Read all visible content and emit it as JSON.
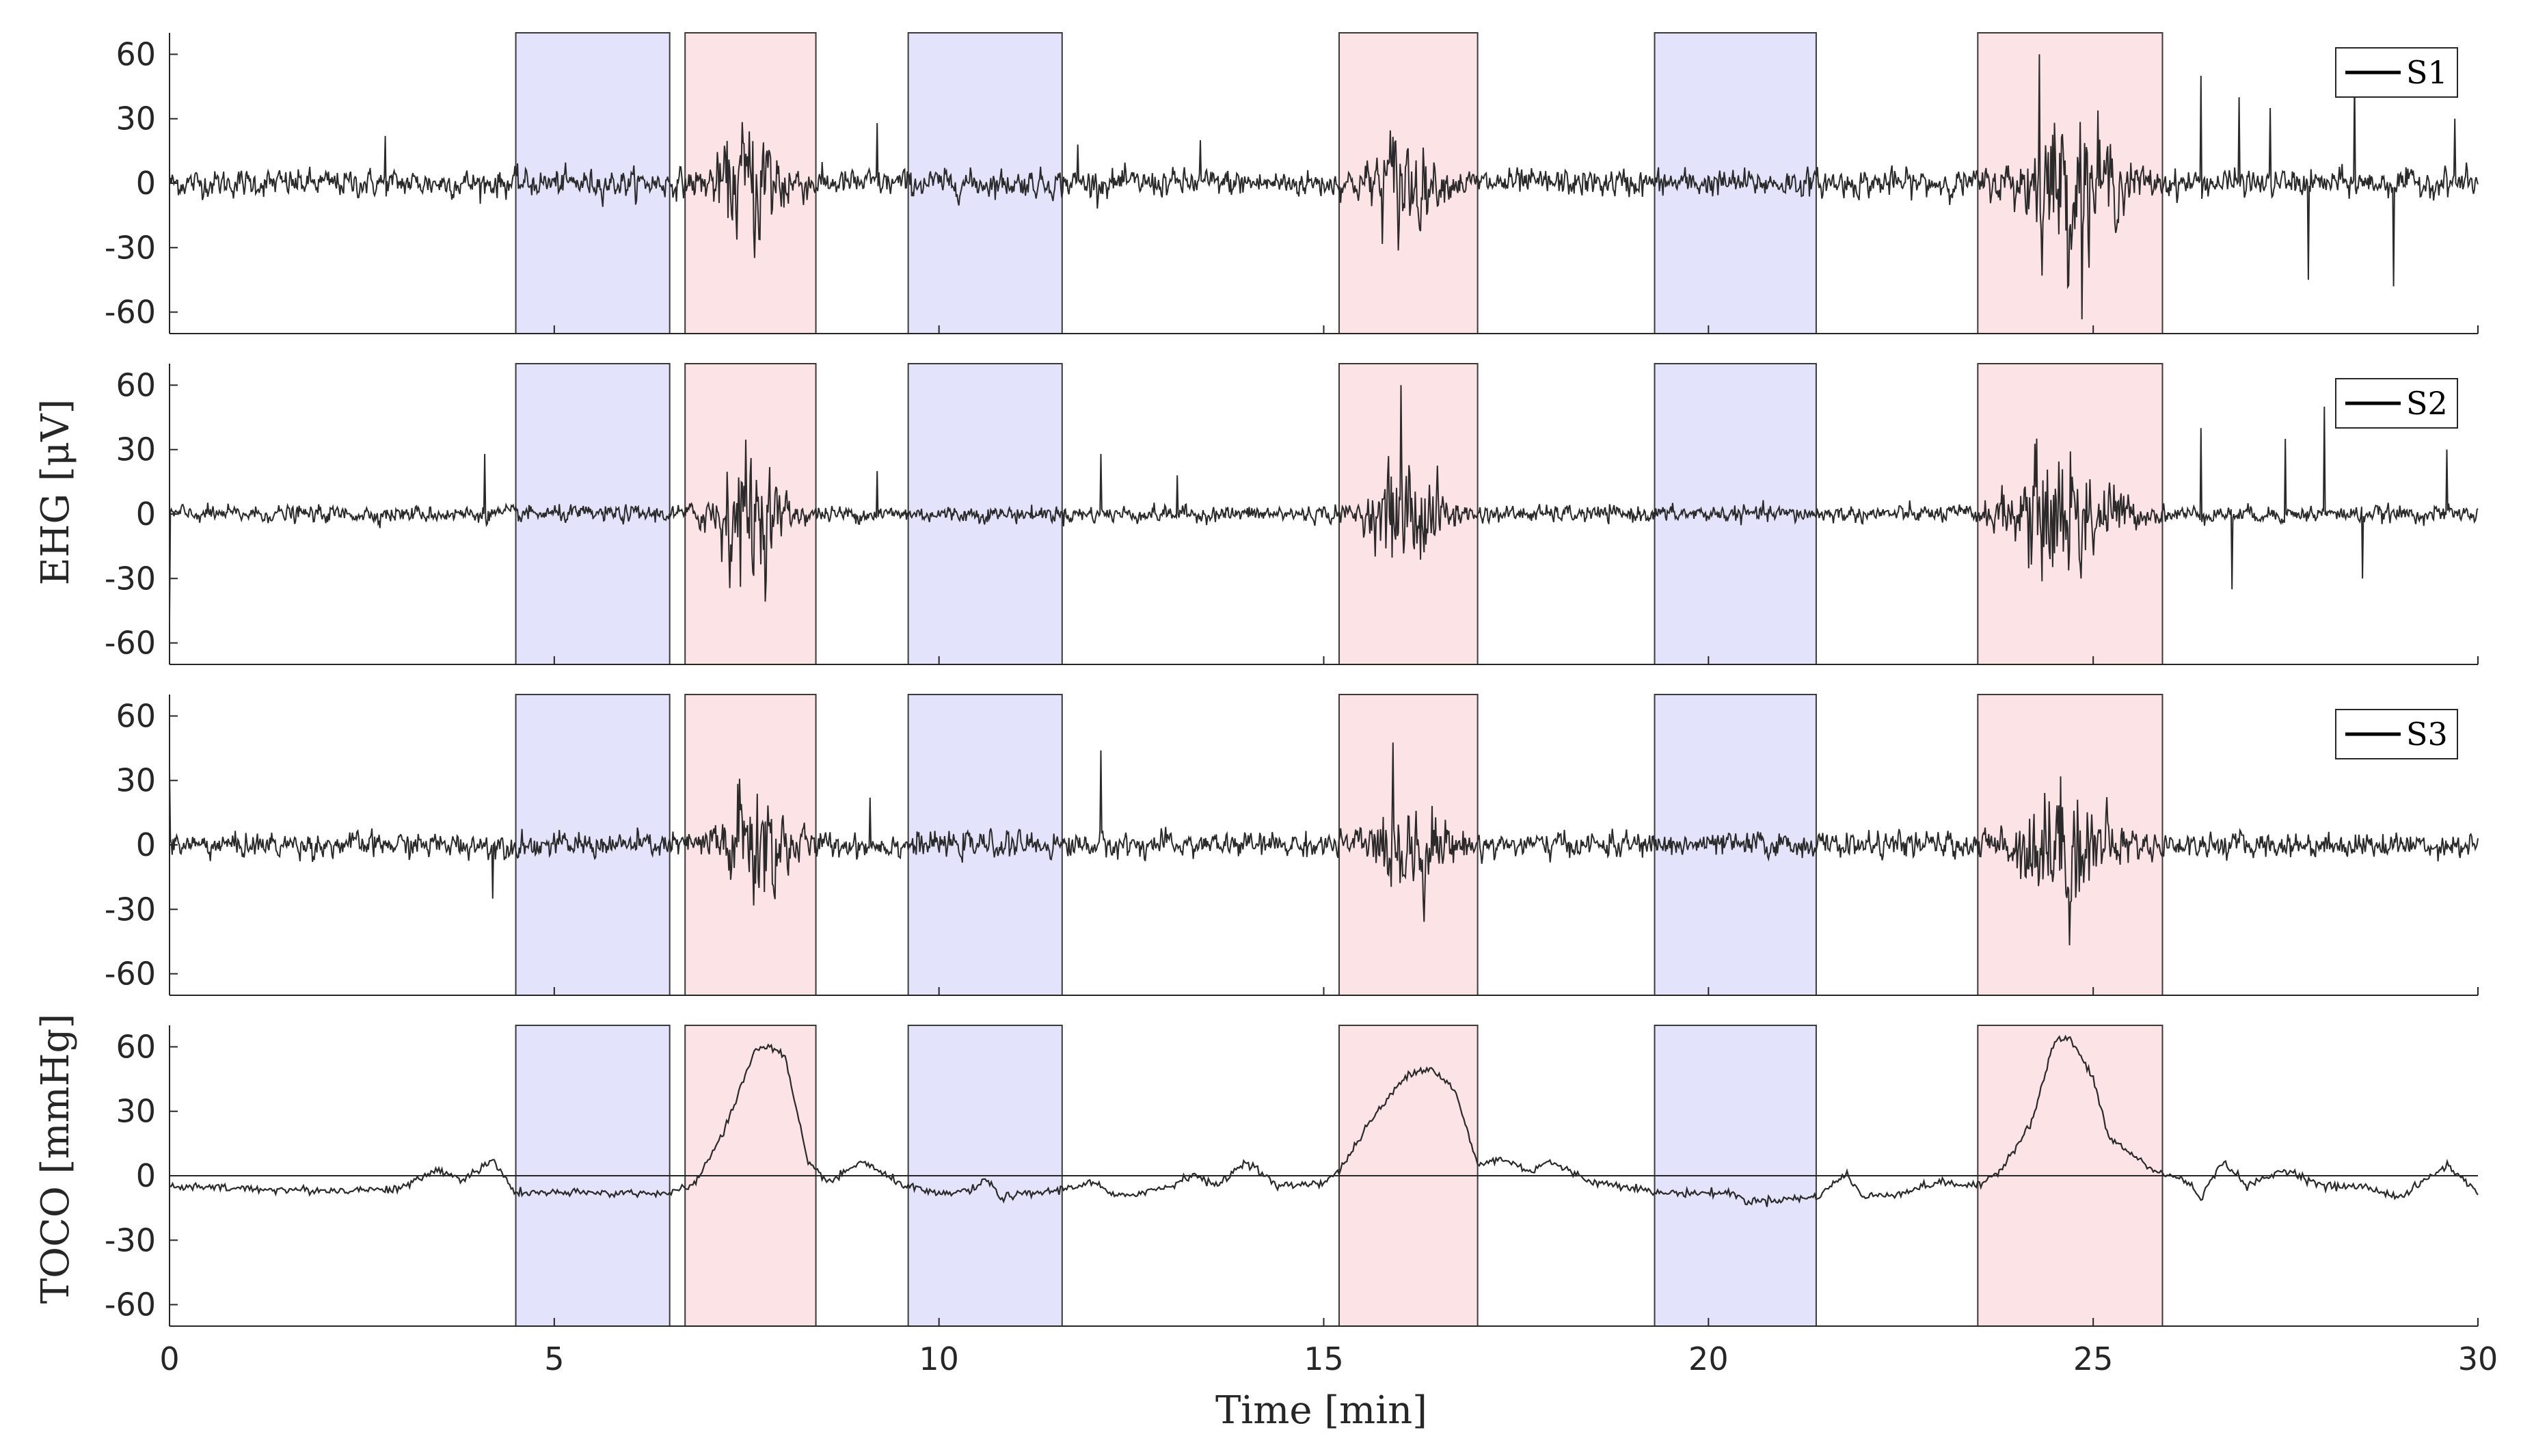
{
  "figure": {
    "xlabel": "Time [min]",
    "xlim": [
      0,
      30
    ],
    "xticks": [
      0,
      5,
      10,
      15,
      20,
      25,
      30
    ],
    "xtick_labels": [
      "0",
      "5",
      "10",
      "15",
      "20",
      "25",
      "30"
    ],
    "ylim": [
      -70,
      70
    ],
    "yticks": [
      60,
      30,
      0,
      -30,
      -60
    ],
    "ytick_labels": [
      "60",
      "30",
      "0",
      "-30",
      "-60"
    ],
    "ylabel_ehg": "EHG [μV]",
    "ylabel_toco": "TOCO [mmHg]"
  },
  "chart_data": {
    "type": "line",
    "x_unit": "min",
    "time_series_description_note": "",
    "regions": [
      {
        "type": "non-contraction",
        "start": 4.5,
        "end": 6.5,
        "color": "#e3e3fb"
      },
      {
        "type": "contraction",
        "start": 6.7,
        "end": 8.4,
        "color": "#fce3e6"
      },
      {
        "type": "non-contraction",
        "start": 9.6,
        "end": 11.6,
        "color": "#e3e3fb"
      },
      {
        "type": "contraction",
        "start": 15.2,
        "end": 17.0,
        "color": "#fce3e6"
      },
      {
        "type": "non-contraction",
        "start": 19.3,
        "end": 21.4,
        "color": "#e3e3fb"
      },
      {
        "type": "contraction",
        "start": 23.5,
        "end": 25.9,
        "color": "#fce3e6"
      }
    ],
    "series": [
      {
        "name": "S1",
        "panel": 1,
        "signal": "EHG",
        "unit": "μV",
        "baseline_amplitude": 10,
        "bursts": [
          {
            "center": 7.6,
            "width": 0.6,
            "amplitude": 40
          },
          {
            "center": 16.0,
            "width": 0.5,
            "amplitude": 35
          },
          {
            "center": 24.7,
            "width": 0.8,
            "amplitude": 50
          }
        ],
        "spikes": [
          [
            2.8,
            22
          ],
          [
            9.2,
            28
          ],
          [
            11.8,
            18
          ],
          [
            13.4,
            20
          ],
          [
            24.3,
            60
          ],
          [
            26.4,
            50
          ],
          [
            26.9,
            40
          ],
          [
            27.3,
            35
          ],
          [
            27.8,
            -45
          ],
          [
            28.4,
            50
          ],
          [
            28.9,
            -48
          ],
          [
            29.7,
            30
          ]
        ]
      },
      {
        "name": "S2",
        "panel": 2,
        "signal": "EHG",
        "unit": "μV",
        "baseline_amplitude": 6,
        "bursts": [
          {
            "center": 7.5,
            "width": 0.6,
            "amplitude": 45
          },
          {
            "center": 16.1,
            "width": 0.6,
            "amplitude": 40
          },
          {
            "center": 24.6,
            "width": 0.9,
            "amplitude": 50
          }
        ],
        "spikes": [
          [
            0.0,
            -50
          ],
          [
            4.1,
            28
          ],
          [
            9.2,
            20
          ],
          [
            12.1,
            28
          ],
          [
            13.1,
            18
          ],
          [
            16.0,
            60
          ],
          [
            26.4,
            40
          ],
          [
            26.8,
            -35
          ],
          [
            27.5,
            35
          ],
          [
            28.0,
            50
          ],
          [
            28.5,
            -30
          ],
          [
            29.6,
            30
          ]
        ]
      },
      {
        "name": "S3",
        "panel": 3,
        "signal": "EHG",
        "unit": "μV",
        "baseline_amplitude": 9,
        "bursts": [
          {
            "center": 7.6,
            "width": 0.6,
            "amplitude": 45
          },
          {
            "center": 16.1,
            "width": 0.6,
            "amplitude": 32
          },
          {
            "center": 24.6,
            "width": 0.8,
            "amplitude": 45
          }
        ],
        "spikes": [
          [
            0.0,
            35
          ],
          [
            4.2,
            -25
          ],
          [
            12.1,
            44
          ],
          [
            9.1,
            22
          ]
        ]
      },
      {
        "name": "TOCO",
        "panel": 4,
        "signal": "TOCO",
        "unit": "mmHg",
        "points": [
          [
            0,
            -5
          ],
          [
            1,
            -6
          ],
          [
            2,
            -7
          ],
          [
            3,
            -6
          ],
          [
            3.5,
            3
          ],
          [
            3.8,
            -2
          ],
          [
            4.2,
            7
          ],
          [
            4.5,
            -8
          ],
          [
            6.5,
            -8
          ],
          [
            6.8,
            -5
          ],
          [
            7.2,
            20
          ],
          [
            7.6,
            58
          ],
          [
            7.8,
            61
          ],
          [
            8.0,
            55
          ],
          [
            8.3,
            5
          ],
          [
            8.6,
            -3
          ],
          [
            9.0,
            7
          ],
          [
            9.3,
            0
          ],
          [
            9.6,
            -5
          ],
          [
            10.0,
            -9
          ],
          [
            10.5,
            -6
          ],
          [
            10.6,
            -1
          ],
          [
            10.8,
            -10
          ],
          [
            11.5,
            -7
          ],
          [
            12.0,
            -3
          ],
          [
            12.3,
            -10
          ],
          [
            13.0,
            -5
          ],
          [
            13.3,
            1
          ],
          [
            13.6,
            -5
          ],
          [
            14.0,
            7
          ],
          [
            14.4,
            -5
          ],
          [
            15.0,
            -3
          ],
          [
            15.2,
            2
          ],
          [
            15.6,
            25
          ],
          [
            16.1,
            48
          ],
          [
            16.4,
            50
          ],
          [
            16.7,
            40
          ],
          [
            17.0,
            5
          ],
          [
            17.3,
            8
          ],
          [
            17.7,
            2
          ],
          [
            17.9,
            7
          ],
          [
            18.5,
            -3
          ],
          [
            19.0,
            -5
          ],
          [
            19.3,
            -8
          ],
          [
            20.3,
            -8
          ],
          [
            20.5,
            -12
          ],
          [
            21.4,
            -10
          ],
          [
            21.8,
            1
          ],
          [
            22.0,
            -10
          ],
          [
            22.5,
            -8
          ],
          [
            23.0,
            -3
          ],
          [
            23.5,
            -5
          ],
          [
            23.8,
            3
          ],
          [
            24.2,
            25
          ],
          [
            24.5,
            63
          ],
          [
            24.7,
            64
          ],
          [
            25.0,
            45
          ],
          [
            25.2,
            18
          ],
          [
            25.5,
            10
          ],
          [
            25.8,
            2
          ],
          [
            26.2,
            -2
          ],
          [
            26.4,
            -10
          ],
          [
            26.7,
            7
          ],
          [
            27.0,
            -5
          ],
          [
            27.5,
            3
          ],
          [
            28.0,
            -5
          ],
          [
            28.5,
            -5
          ],
          [
            29.0,
            -10
          ],
          [
            29.6,
            5
          ],
          [
            30.0,
            -8
          ]
        ]
      }
    ],
    "toco_reference_line": 0
  },
  "legend": {
    "panel1": "S1",
    "panel2": "S2",
    "panel3": "S3"
  }
}
